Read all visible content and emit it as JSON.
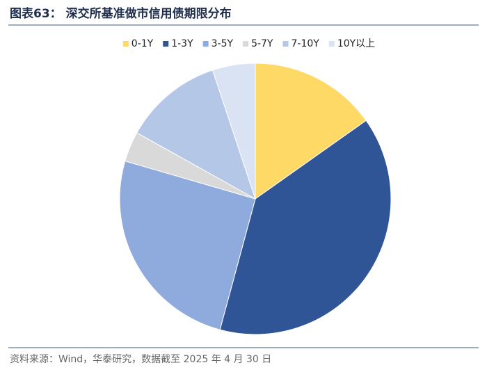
{
  "chart_data": {
    "type": "pie",
    "title": "图表63： 深交所基准做市信用债期限分布",
    "source": "资料来源：Wind，华泰研究，数据截至 2025 年 4 月 30 日",
    "categories": [
      "0-1Y",
      "1-3Y",
      "3-5Y",
      "5-7Y",
      "7-10Y",
      "10Y以上"
    ],
    "values": [
      15.2,
      39.0,
      25.3,
      3.6,
      11.8,
      5.1
    ],
    "colors": [
      "#FFD966",
      "#2F5597",
      "#8FAADC",
      "#D9D9D9",
      "#B4C7E7",
      "#DAE3F3"
    ],
    "legend": "top"
  }
}
